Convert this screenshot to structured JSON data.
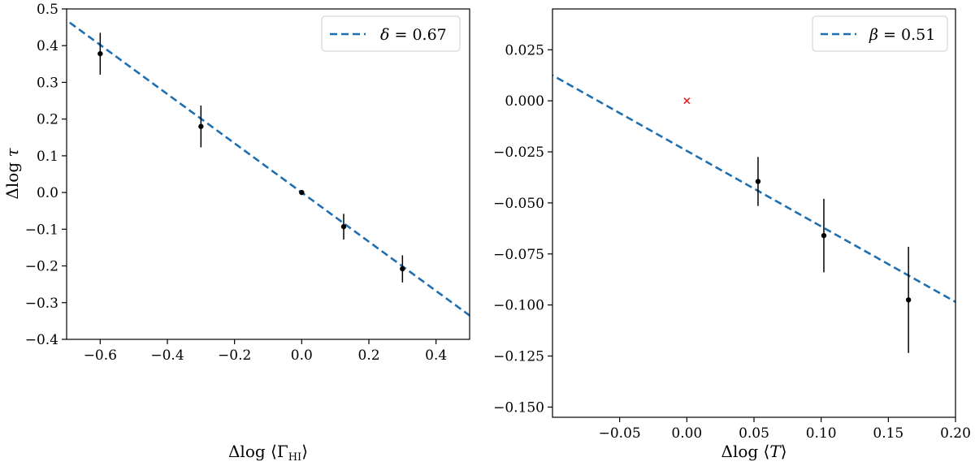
{
  "chart_data": [
    {
      "type": "scatter",
      "title": "",
      "xlabel": "Δlog⟨Γ_HI⟩",
      "ylabel": "Δlog τ",
      "xlim": [
        -0.7,
        0.5
      ],
      "ylim": [
        -0.4,
        0.5
      ],
      "xticks": [
        -0.6,
        -0.4,
        -0.2,
        0.0,
        0.2,
        0.4
      ],
      "xtick_labels": [
        "−0.6",
        "−0.4",
        "−0.2",
        "0.0",
        "0.2",
        "0.4"
      ],
      "yticks": [
        -0.4,
        -0.3,
        -0.2,
        -0.1,
        0.0,
        0.1,
        0.2,
        0.3,
        0.4,
        0.5
      ],
      "ytick_labels": [
        "−0.4",
        "−0.3",
        "−0.2",
        "−0.1",
        "0.0",
        "0.1",
        "0.2",
        "0.3",
        "0.4",
        "0.5"
      ],
      "grid": false,
      "legend": {
        "position": "top-right",
        "entries": [
          {
            "symbol": "δ",
            "value": "0.67",
            "text": "δ = 0.67"
          }
        ]
      },
      "fit_line": {
        "style": "dashed",
        "color": "#1f6fb0",
        "slope": -0.67,
        "intercept": 0.0
      },
      "points": [
        {
          "x": -0.6,
          "y": 0.378,
          "yerr": 0.057
        },
        {
          "x": -0.3,
          "y": 0.18,
          "yerr": 0.057
        },
        {
          "x": 0.0,
          "y": 0.0,
          "yerr": 0.0
        },
        {
          "x": 0.125,
          "y": -0.093,
          "yerr": 0.035
        },
        {
          "x": 0.3,
          "y": -0.208,
          "yerr": 0.037
        }
      ]
    },
    {
      "type": "scatter",
      "title": "",
      "xlabel": "Δlog⟨T⟩",
      "ylabel": "",
      "xlim": [
        -0.1,
        0.2
      ],
      "ylim": [
        -0.155,
        0.045
      ],
      "xticks": [
        -0.05,
        0.0,
        0.05,
        0.1,
        0.15,
        0.2
      ],
      "xtick_labels": [
        "−0.05",
        "0.00",
        "0.05",
        "0.10",
        "0.15",
        "0.20"
      ],
      "yticks": [
        -0.15,
        -0.125,
        -0.1,
        -0.075,
        -0.05,
        -0.025,
        0.0,
        0.025
      ],
      "ytick_labels": [
        "−0.150",
        "−0.125",
        "−0.100",
        "−0.075",
        "−0.050",
        "−0.025",
        "0.000",
        "0.025"
      ],
      "grid": false,
      "legend": {
        "position": "top-right",
        "entries": [
          {
            "symbol": "β",
            "value": "0.51",
            "text": "β = 0.51"
          }
        ]
      },
      "fit_line": {
        "style": "dashed",
        "color": "#1f6fb0",
        "slope": -0.37,
        "intercept": -0.0245
      },
      "points": [
        {
          "x": 0.053,
          "y": -0.0395,
          "yerr": 0.012
        },
        {
          "x": 0.102,
          "y": -0.066,
          "yerr": 0.018
        },
        {
          "x": 0.165,
          "y": -0.0975,
          "yerr": 0.026
        }
      ],
      "reference_marker": {
        "x": 0.0,
        "y": 0.0,
        "marker": "x",
        "color": "#d62728"
      }
    }
  ]
}
